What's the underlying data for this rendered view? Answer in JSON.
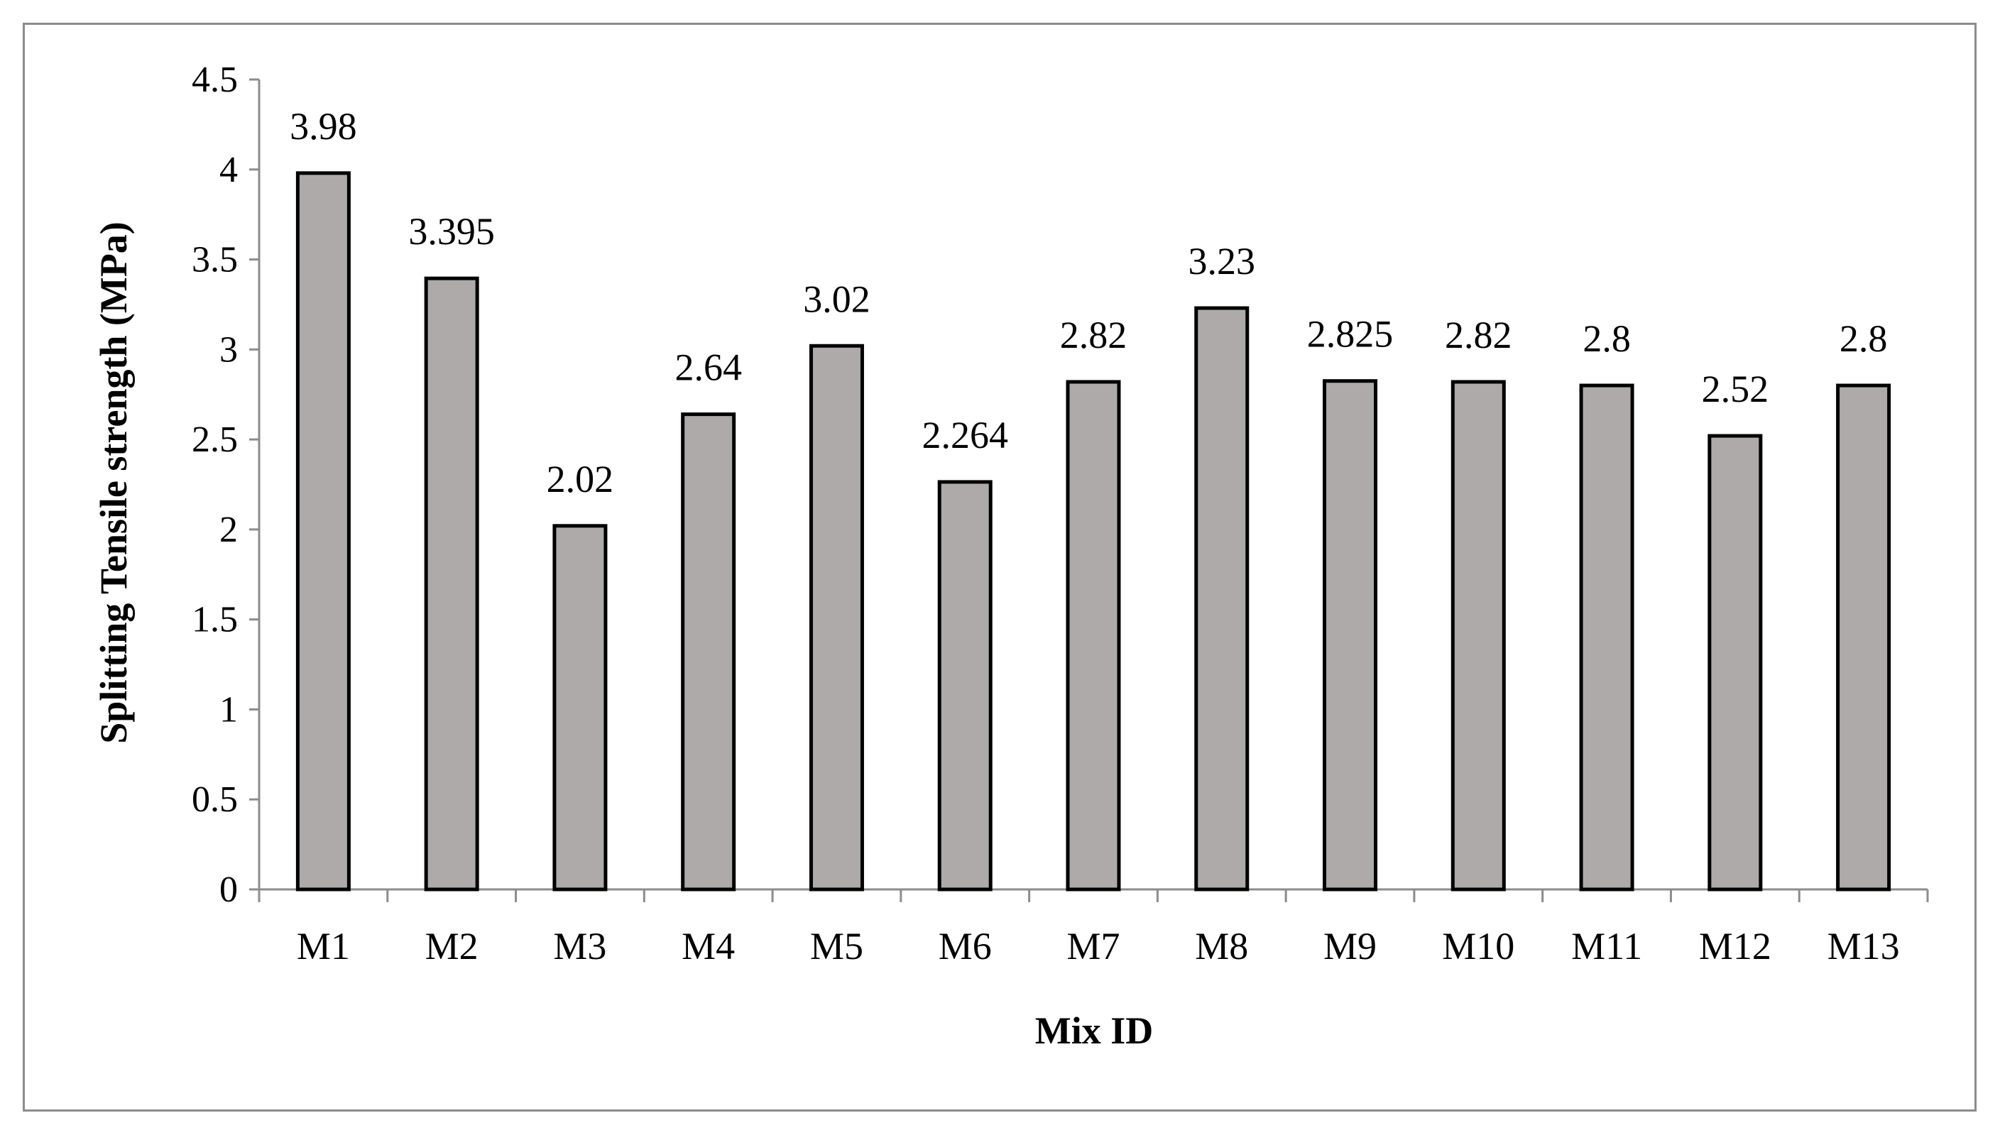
{
  "chart_data": {
    "type": "bar",
    "title": "",
    "xlabel": "Mix ID",
    "ylabel": "Splitting Tensile strength (MPa)",
    "categories": [
      "M1",
      "M2",
      "M3",
      "M4",
      "M5",
      "M6",
      "M7",
      "M8",
      "M9",
      "M10",
      "M11",
      "M12",
      "M13"
    ],
    "values": [
      3.98,
      3.395,
      2.02,
      2.64,
      3.02,
      2.264,
      2.82,
      3.23,
      2.825,
      2.82,
      2.8,
      2.52,
      2.8
    ],
    "data_labels": [
      "3.98",
      "3.395",
      "2.02",
      "2.64",
      "3.02",
      "2.264",
      "2.82",
      "3.23",
      "2.825",
      "2.82",
      "2.8",
      "2.52",
      "2.8"
    ],
    "ylim": [
      0,
      4.5
    ],
    "yticks": [
      "0",
      "0.5",
      "1",
      "1.5",
      "2",
      "2.5",
      "3",
      "3.5",
      "4",
      "4.5"
    ],
    "grid": false,
    "legend": "none",
    "colors": {
      "bar_fill": "#aeaaaa",
      "bar_stroke": "#000000",
      "axis": "#8c8c8c",
      "frame": "#8c8c8c"
    }
  }
}
